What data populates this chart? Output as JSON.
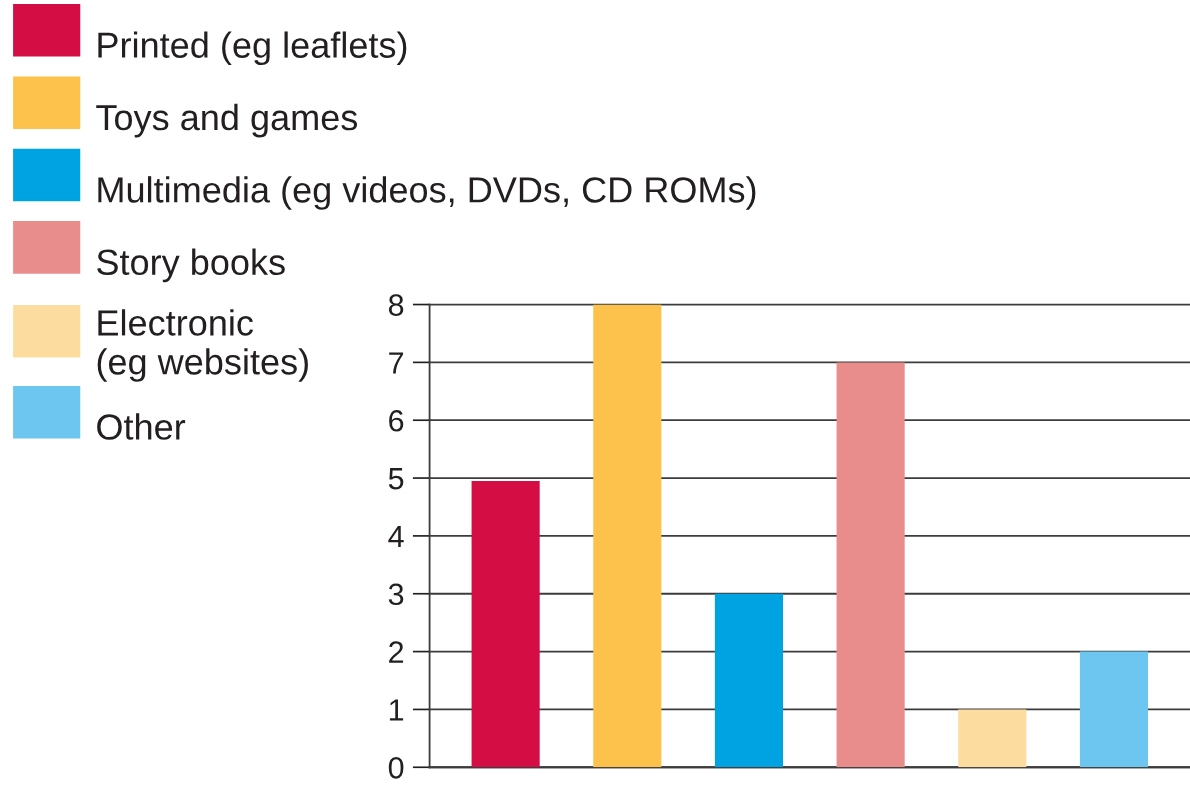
{
  "chart_data": {
    "type": "bar",
    "categories": [
      null,
      null,
      null,
      null,
      null,
      null
    ],
    "series": [
      {
        "name": "Printed (eg leaflets)",
        "color": "#d40e45",
        "values": [
          4.95,
          null,
          null,
          null,
          null,
          null
        ]
      },
      {
        "name": "Toys and games",
        "color": "#fdc24c",
        "values": [
          null,
          8,
          null,
          null,
          null,
          null
        ]
      },
      {
        "name": "Multimedia (eg videos, DVDs, CD ROMs)",
        "color": "#00a3e2",
        "values": [
          null,
          null,
          3,
          null,
          null,
          null
        ]
      },
      {
        "name": "Story books",
        "color": "#e88d8c",
        "values": [
          null,
          null,
          null,
          7,
          null,
          null
        ]
      },
      {
        "name": "Electronic\n(eg websites)",
        "color": "#fddc9f",
        "values": [
          null,
          null,
          null,
          null,
          1,
          null
        ]
      },
      {
        "name": "Other",
        "color": "#6cc6f0",
        "values": [
          null,
          null,
          null,
          null,
          null,
          2
        ]
      }
    ],
    "ylim": [
      0,
      8
    ],
    "yticks": [
      0,
      1,
      2,
      3,
      4,
      5,
      6,
      7,
      8
    ],
    "grid": "y",
    "legend": "left",
    "tick_labels": "y"
  }
}
